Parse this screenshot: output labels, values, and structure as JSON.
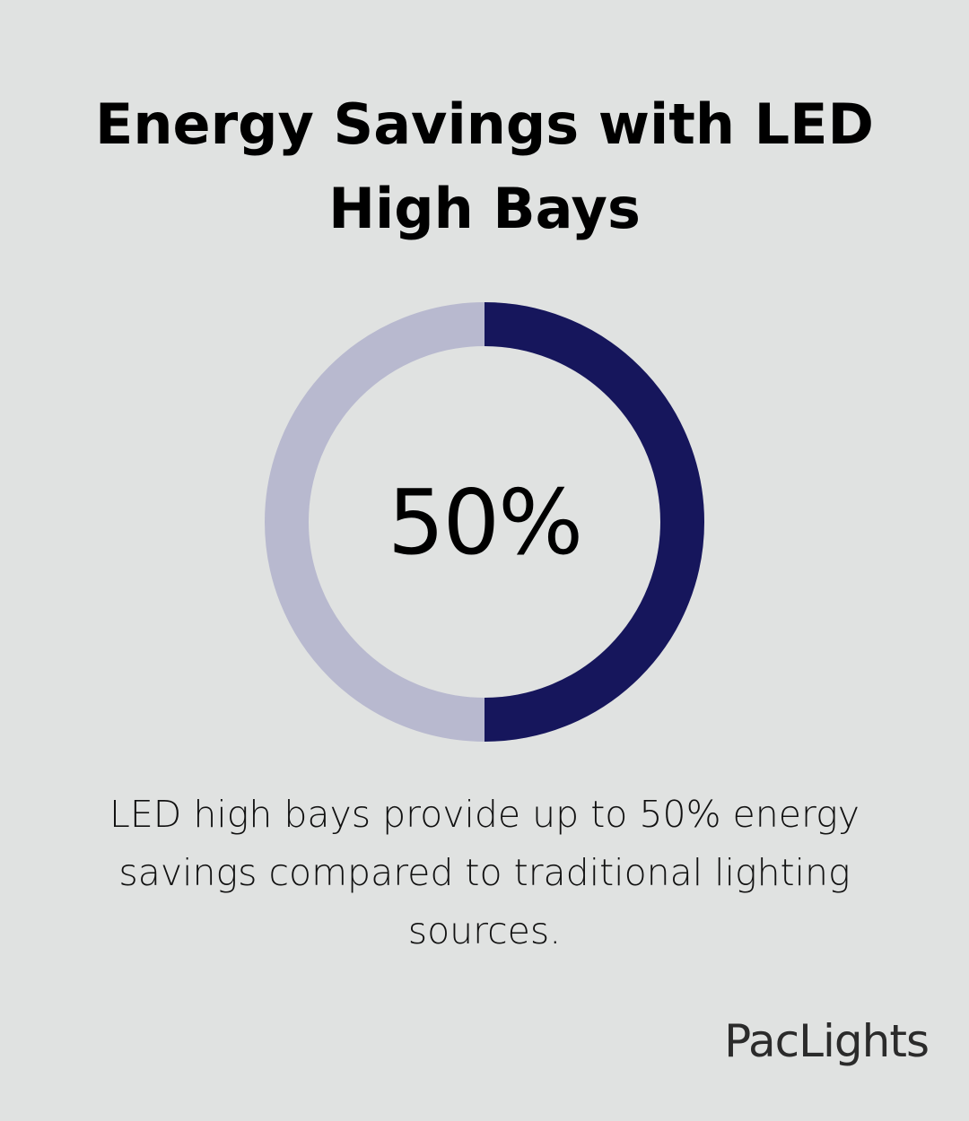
{
  "title": "Energy Savings with LED High Bays",
  "chart_data": {
    "type": "pie",
    "variant": "donut",
    "value": 50,
    "value_label": "50%",
    "max": 100,
    "colors": {
      "fill": "#16165c",
      "track": "#b8b9cf"
    }
  },
  "caption": "LED high bays provide up to 50% energy savings compared to traditional lighting sources.",
  "brand": "PacLights"
}
